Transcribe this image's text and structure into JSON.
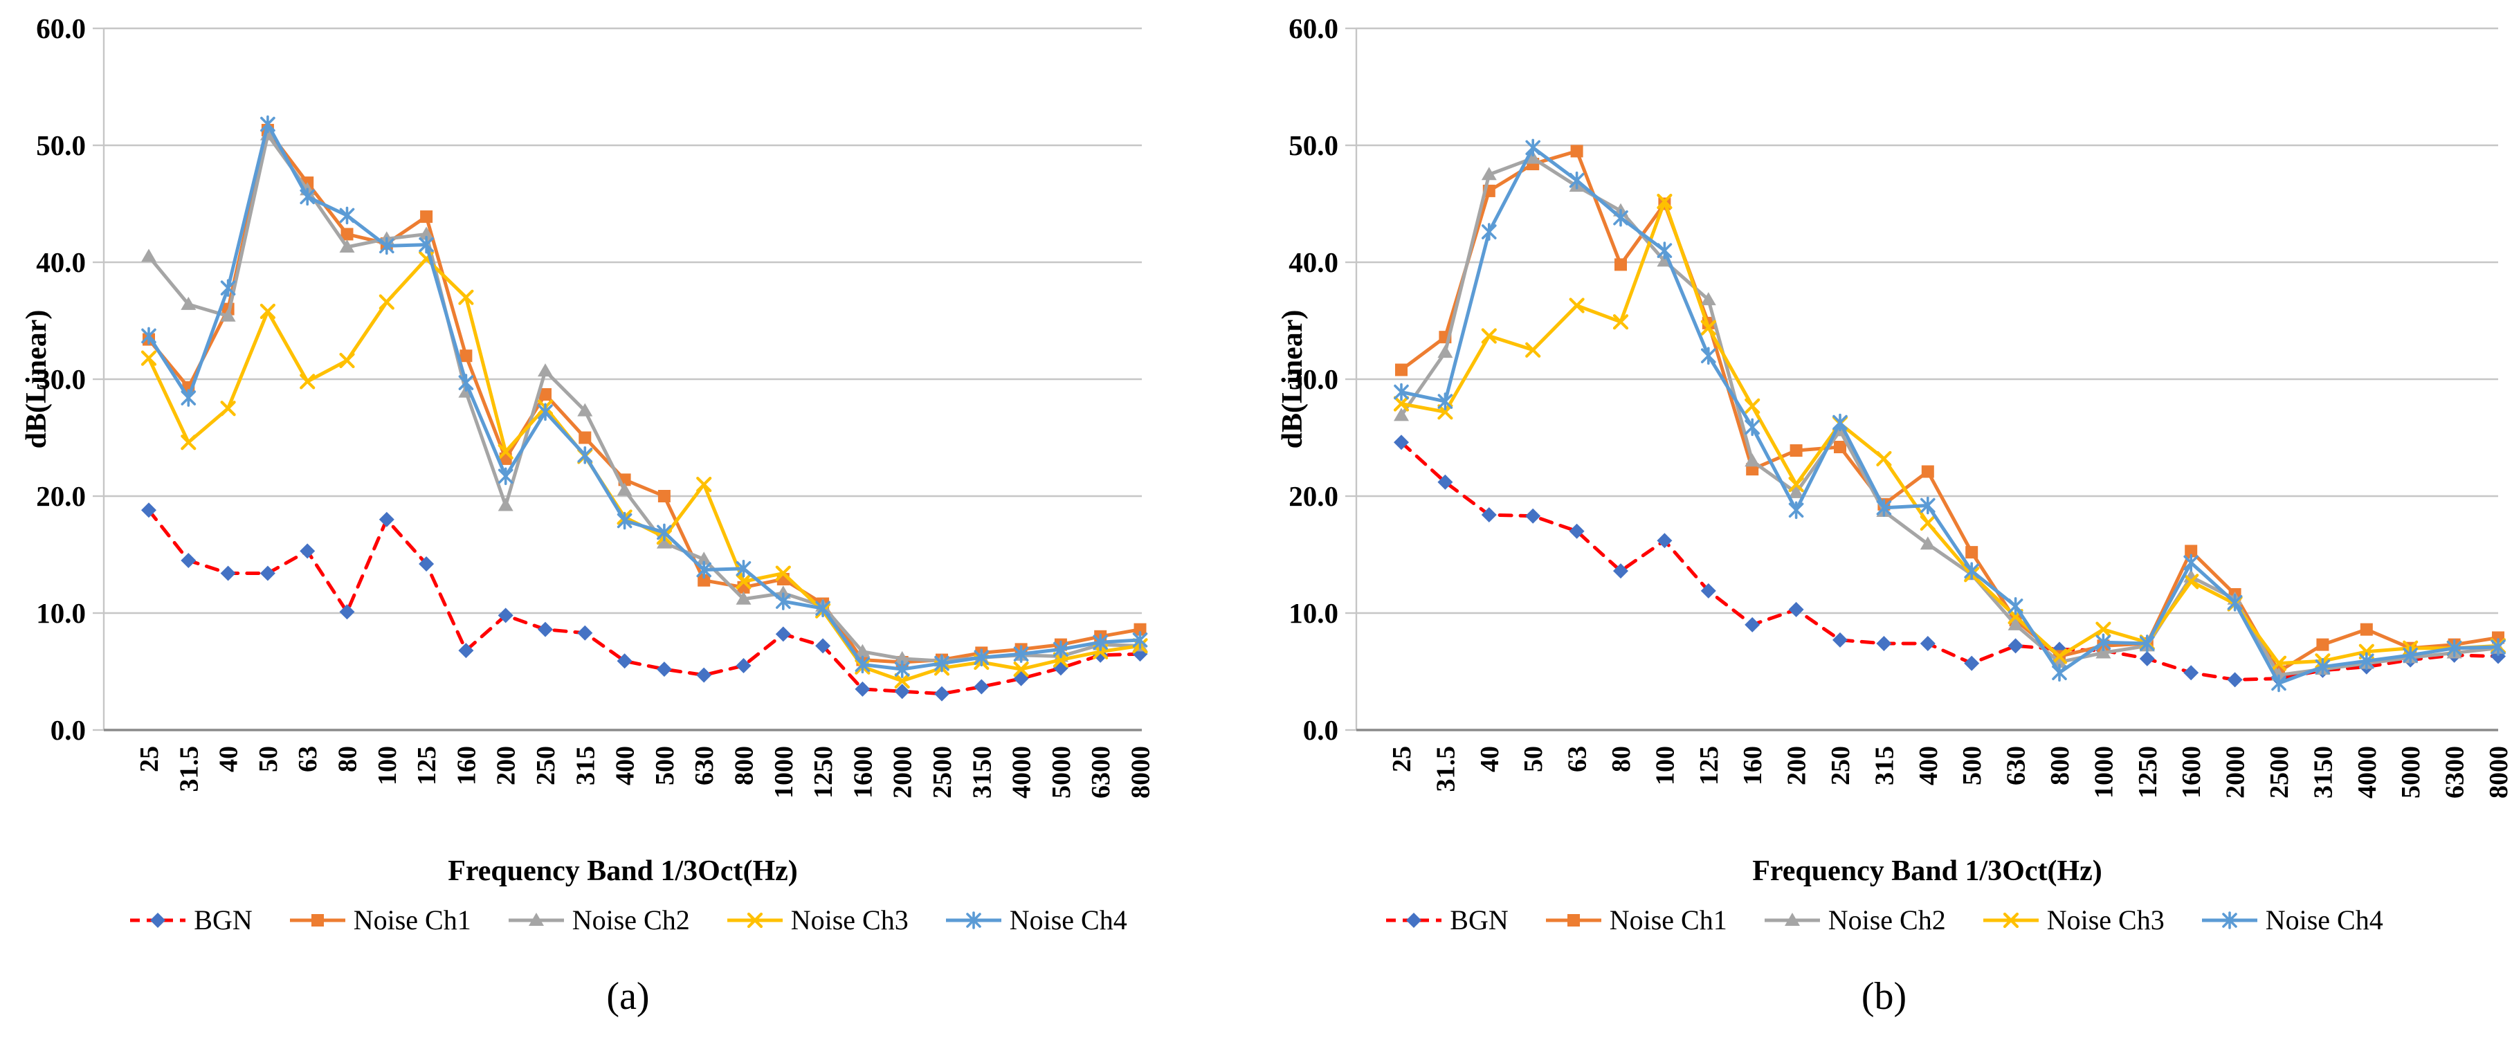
{
  "page": {
    "background": "#ffffff"
  },
  "chart_data": [
    {
      "type": "line",
      "caption": "(a)",
      "xlabel": "Frequency Band 1/3Oct(Hz)",
      "ylabel": "dB(Linear)",
      "ylim": [
        0,
        60
      ],
      "ytick_labels": [
        "0.0",
        "10.0",
        "20.0",
        "30.0",
        "40.0",
        "50.0",
        "60.0"
      ],
      "grid": true,
      "legend_position": "bottom",
      "categories": [
        "25",
        "31.5",
        "40",
        "50",
        "63",
        "80",
        "100",
        "125",
        "160",
        "200",
        "250",
        "315",
        "400",
        "500",
        "630",
        "800",
        "1000",
        "1250",
        "1600",
        "2000",
        "2500",
        "3150",
        "4000",
        "5000",
        "6300",
        "8000"
      ],
      "series": [
        {
          "name": "BGN",
          "line_color": "#FF0000",
          "marker": "diamond",
          "marker_color": "#4472C4",
          "dashed": true,
          "values": [
            18.8,
            14.5,
            13.4,
            13.4,
            15.3,
            10.1,
            18.0,
            14.2,
            6.8,
            9.8,
            8.6,
            8.3,
            5.9,
            5.2,
            4.7,
            5.5,
            8.2,
            7.2,
            3.5,
            3.3,
            3.1,
            3.7,
            4.4,
            5.3,
            6.4,
            6.5
          ]
        },
        {
          "name": "Noise Ch1",
          "line_color": "#ED7D31",
          "marker": "square",
          "marker_color": "#ED7D31",
          "dashed": false,
          "values": [
            33.4,
            29.3,
            36.0,
            51.3,
            46.8,
            42.4,
            41.6,
            43.9,
            32.0,
            23.2,
            28.7,
            25.0,
            21.4,
            20.0,
            12.8,
            12.2,
            12.9,
            10.8,
            6.0,
            5.8,
            6.0,
            6.6,
            6.9,
            7.3,
            8.0,
            8.6
          ]
        },
        {
          "name": "Noise Ch2",
          "line_color": "#A5A5A5",
          "marker": "triangle",
          "marker_color": "#A5A5A5",
          "dashed": false,
          "values": [
            40.5,
            36.4,
            35.4,
            50.9,
            46.2,
            41.3,
            42.0,
            42.4,
            28.9,
            19.2,
            30.7,
            27.3,
            20.5,
            16.0,
            14.6,
            11.2,
            11.7,
            10.6,
            6.7,
            6.1,
            5.9,
            6.2,
            6.4,
            6.3,
            7.3,
            7.2
          ]
        },
        {
          "name": "Noise Ch3",
          "line_color": "#FFC000",
          "marker": "x",
          "marker_color": "#FFC000",
          "dashed": false,
          "values": [
            31.8,
            24.6,
            27.5,
            35.8,
            29.8,
            31.6,
            36.6,
            40.3,
            37.0,
            23.8,
            27.6,
            23.4,
            18.2,
            16.5,
            21.0,
            12.7,
            13.4,
            10.2,
            5.4,
            4.2,
            5.3,
            5.8,
            5.2,
            6.0,
            6.7,
            7.2
          ]
        },
        {
          "name": "Noise Ch4",
          "line_color": "#5B9BD5",
          "marker": "star",
          "marker_color": "#5B9BD5",
          "dashed": false,
          "values": [
            33.7,
            28.4,
            37.8,
            51.8,
            45.6,
            44.0,
            41.4,
            41.5,
            29.7,
            21.7,
            27.2,
            23.5,
            17.9,
            16.9,
            13.7,
            13.8,
            11.0,
            10.4,
            5.6,
            5.2,
            5.7,
            6.2,
            6.5,
            6.9,
            7.5,
            7.7
          ]
        }
      ]
    },
    {
      "type": "line",
      "caption": "(b)",
      "xlabel": "Frequency Band 1/3Oct(Hz)",
      "ylabel": "dB(Linear)",
      "ylim": [
        0,
        60
      ],
      "ytick_labels": [
        "0.0",
        "10.0",
        "20.0",
        "30.0",
        "40.0",
        "50.0",
        "60.0"
      ],
      "grid": true,
      "legend_position": "bottom",
      "categories": [
        "25",
        "31.5",
        "40",
        "50",
        "63",
        "80",
        "100",
        "125",
        "160",
        "200",
        "250",
        "315",
        "400",
        "500",
        "630",
        "800",
        "1000",
        "1250",
        "1600",
        "2000",
        "2500",
        "3150",
        "4000",
        "5000",
        "6300",
        "8000"
      ],
      "series": [
        {
          "name": "BGN",
          "line_color": "#FF0000",
          "marker": "diamond",
          "marker_color": "#4472C4",
          "dashed": true,
          "values": [
            24.6,
            21.2,
            18.4,
            18.3,
            17.0,
            13.6,
            16.2,
            11.9,
            9.0,
            10.3,
            7.7,
            7.4,
            7.4,
            5.7,
            7.2,
            6.9,
            6.8,
            6.1,
            4.9,
            4.3,
            4.4,
            5.1,
            5.4,
            6.0,
            6.4,
            6.3
          ]
        },
        {
          "name": "Noise Ch1",
          "line_color": "#ED7D31",
          "marker": "square",
          "marker_color": "#ED7D31",
          "dashed": false,
          "values": [
            30.8,
            33.6,
            46.1,
            48.4,
            49.5,
            39.8,
            45.0,
            34.8,
            22.3,
            23.9,
            24.2,
            19.3,
            22.1,
            15.2,
            9.4,
            6.3,
            7.2,
            7.4,
            15.3,
            11.6,
            5.0,
            7.3,
            8.6,
            7.0,
            7.3,
            7.9
          ]
        },
        {
          "name": "Noise Ch2",
          "line_color": "#A5A5A5",
          "marker": "triangle",
          "marker_color": "#A5A5A5",
          "dashed": false,
          "values": [
            26.9,
            32.3,
            47.5,
            48.9,
            46.5,
            44.4,
            40.1,
            36.8,
            23.0,
            20.3,
            25.6,
            18.7,
            15.9,
            13.3,
            9.0,
            5.8,
            6.6,
            7.2,
            13.1,
            11.2,
            4.7,
            5.2,
            5.7,
            6.2,
            6.6,
            7.0
          ]
        },
        {
          "name": "Noise Ch3",
          "line_color": "#FFC000",
          "marker": "x",
          "marker_color": "#FFC000",
          "dashed": false,
          "values": [
            27.9,
            27.2,
            33.7,
            32.5,
            36.3,
            34.9,
            45.2,
            34.4,
            27.7,
            21.0,
            26.2,
            23.2,
            17.7,
            13.3,
            9.7,
            6.3,
            8.6,
            7.5,
            12.7,
            10.8,
            5.7,
            5.9,
            6.7,
            7.0,
            7.0,
            7.2
          ]
        },
        {
          "name": "Noise Ch4",
          "line_color": "#5B9BD5",
          "marker": "star",
          "marker_color": "#5B9BD5",
          "dashed": false,
          "values": [
            28.9,
            28.1,
            42.6,
            49.8,
            47.0,
            43.8,
            41.0,
            32.0,
            25.9,
            18.8,
            26.3,
            19.0,
            19.2,
            13.6,
            10.6,
            4.9,
            7.5,
            7.4,
            14.3,
            10.9,
            4.0,
            5.4,
            5.9,
            6.4,
            7.0,
            7.1
          ]
        }
      ]
    }
  ],
  "style_colors": {
    "gridline": "#C6C6C6",
    "axis_bottom": "#8A8A8A",
    "axis_left": "#C6C6C6",
    "text": "#000000"
  }
}
